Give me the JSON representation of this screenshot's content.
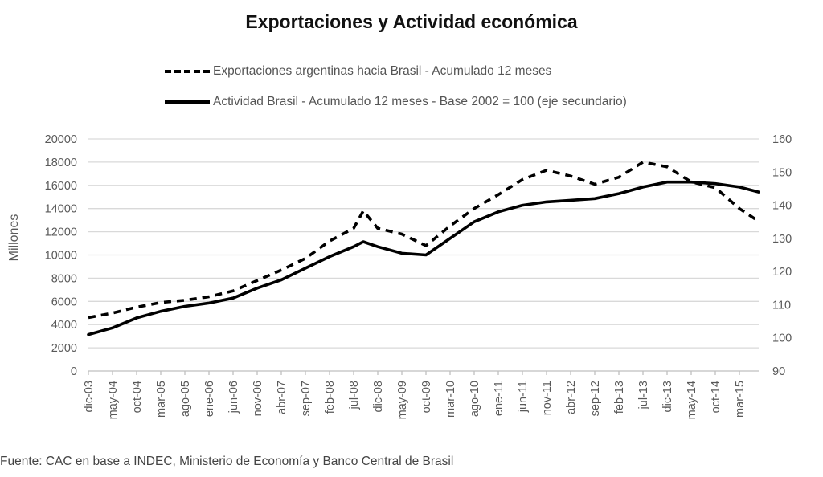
{
  "chart_data": {
    "type": "line",
    "title": "Exportaciones y Actividad económica",
    "xlabel": "",
    "ylabel": "Millones",
    "y2label": "",
    "ylim": [
      0,
      20000
    ],
    "y2lim": [
      90,
      160
    ],
    "yticks": [
      0,
      2000,
      4000,
      6000,
      8000,
      10000,
      12000,
      14000,
      16000,
      18000,
      20000
    ],
    "y2ticks": [
      90,
      100,
      110,
      120,
      130,
      140,
      150,
      160
    ],
    "grid": true,
    "legend_position": "top-center",
    "x_tick_labels": [
      "dic-03",
      "may-04",
      "oct-04",
      "mar-05",
      "ago-05",
      "ene-06",
      "jun-06",
      "nov-06",
      "abr-07",
      "sep-07",
      "feb-08",
      "jul-08",
      "dic-08",
      "may-09",
      "oct-09",
      "mar-10",
      "ago-10",
      "ene-11",
      "jun-11",
      "nov-11",
      "abr-12",
      "sep-12",
      "feb-13",
      "jul-13",
      "dic-13",
      "may-14",
      "oct-14",
      "mar-15"
    ],
    "x_months_from_start": [
      0,
      5,
      10,
      15,
      20,
      25,
      30,
      35,
      40,
      45,
      50,
      55,
      60,
      65,
      70,
      75,
      80,
      85,
      90,
      95,
      100,
      105,
      110,
      115,
      120,
      125,
      130,
      135
    ],
    "x_range_months": [
      0,
      139
    ],
    "series": [
      {
        "name": "Exportaciones argentinas hacia Brasil - Acumulado 12 meses",
        "axis": "primary",
        "style": "dashed",
        "color": "#000000",
        "x": [
          0,
          5,
          10,
          15,
          20,
          25,
          30,
          35,
          40,
          45,
          50,
          55,
          57,
          60,
          65,
          70,
          75,
          80,
          85,
          90,
          95,
          100,
          105,
          110,
          115,
          120,
          125,
          130,
          135,
          139
        ],
        "values": [
          4600,
          5000,
          5500,
          5900,
          6100,
          6400,
          6900,
          7800,
          8700,
          9700,
          11200,
          12300,
          13800,
          12300,
          11800,
          10800,
          12500,
          14000,
          15200,
          16500,
          17300,
          16800,
          16100,
          16700,
          18000,
          17600,
          16300,
          15800,
          14000,
          12900
        ]
      },
      {
        "name": "Actividad Brasil - Acumulado 12 meses - Base 2002 = 100 (eje secundario)",
        "axis": "secondary",
        "style": "solid",
        "color": "#000000",
        "x": [
          0,
          5,
          10,
          15,
          20,
          25,
          30,
          35,
          40,
          45,
          50,
          55,
          57,
          60,
          65,
          70,
          75,
          80,
          85,
          90,
          95,
          100,
          105,
          110,
          115,
          120,
          125,
          130,
          135,
          139
        ],
        "values": [
          101,
          103,
          106,
          108,
          109.5,
          110.5,
          112,
          115,
          117.5,
          121,
          124.5,
          127.5,
          129,
          127.5,
          125.5,
          125,
          130,
          135,
          138,
          140,
          141,
          141.5,
          142,
          143.5,
          145.5,
          147,
          147,
          146.5,
          145.5,
          144
        ]
      }
    ],
    "source": "Fuente: CAC en base a INDEC, Ministerio de Economía y Banco Central de Brasil"
  }
}
